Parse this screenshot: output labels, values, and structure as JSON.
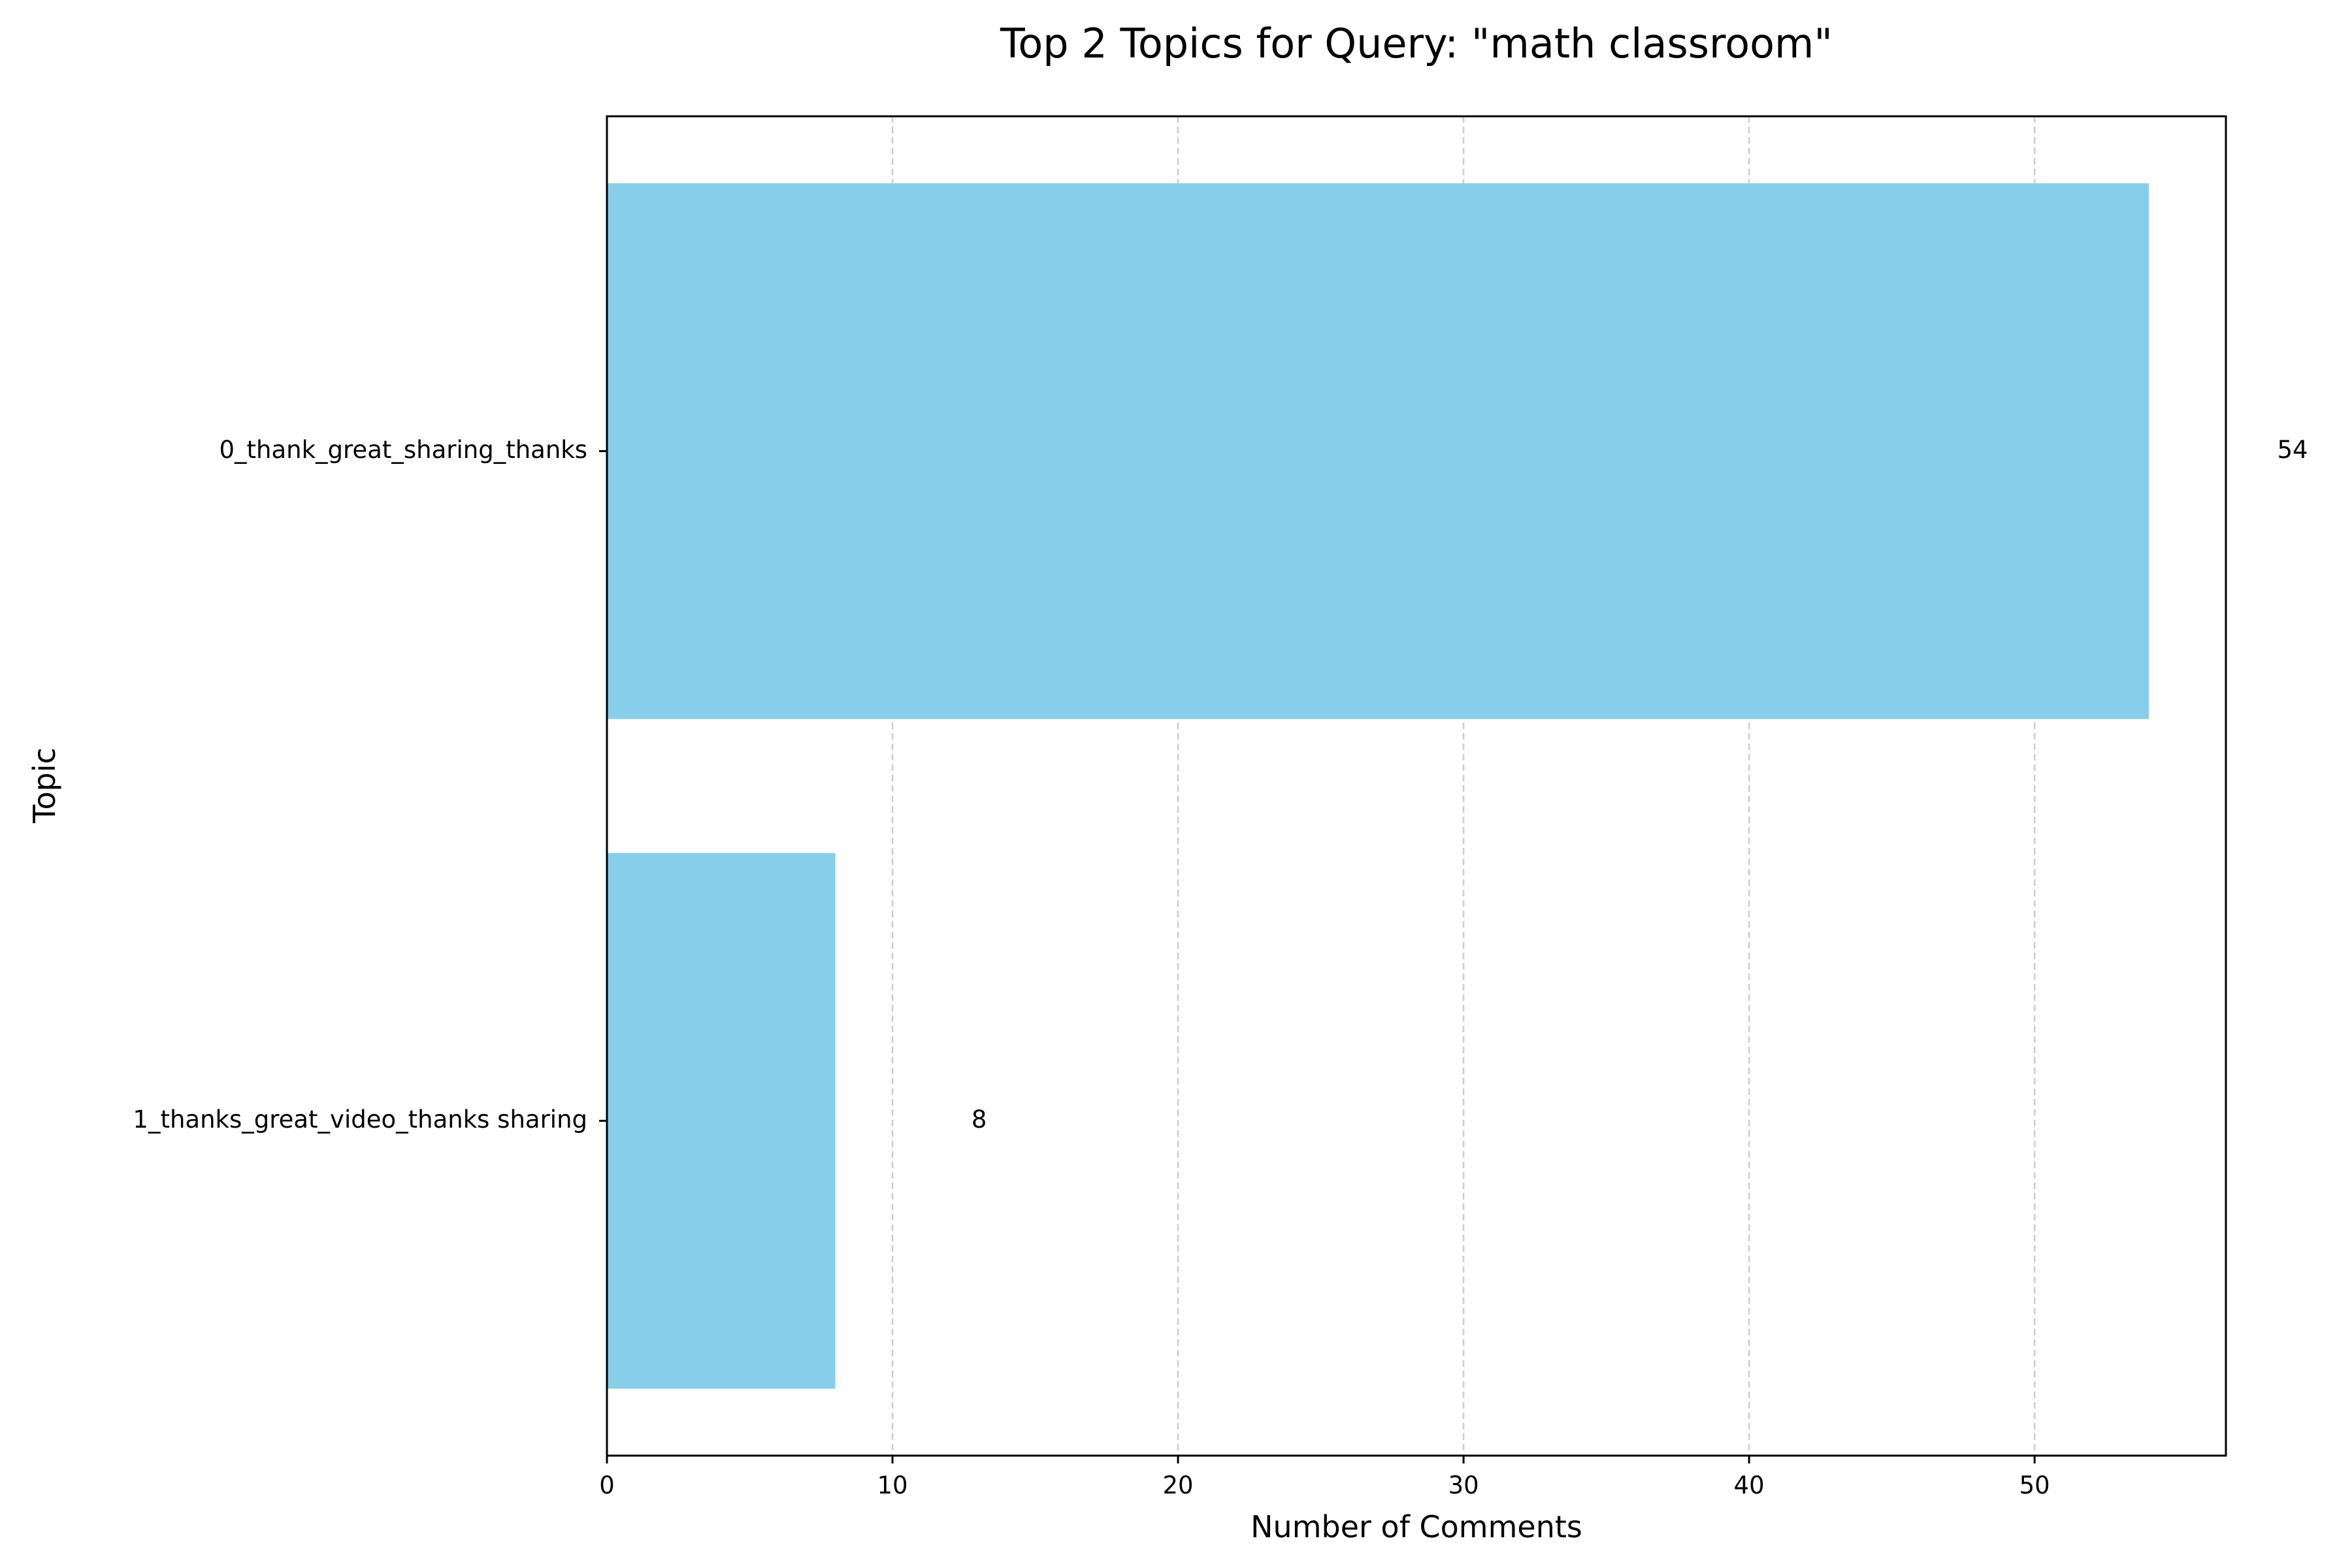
{
  "chart_data": {
    "type": "bar",
    "orientation": "horizontal",
    "title": "Top 2 Topics for Query: \"math classroom\"",
    "xlabel": "Number of Comments",
    "ylabel": "Topic",
    "categories": [
      "0_thank_great_sharing_thanks",
      "1_thanks_great_video_thanks sharing"
    ],
    "values": [
      54,
      8
    ],
    "data_labels": [
      "54",
      "8"
    ],
    "xlim": [
      0,
      56.7
    ],
    "xticks": [
      0,
      10,
      20,
      30,
      40,
      50
    ],
    "xtick_labels": [
      "0",
      "10",
      "20",
      "30",
      "40",
      "50"
    ],
    "grid": "x-axis dashed",
    "bar_color": "#87CEEB",
    "grid_color": "#cccccc"
  }
}
